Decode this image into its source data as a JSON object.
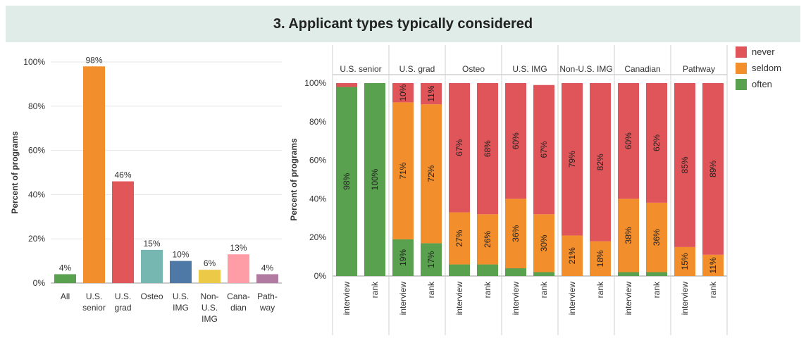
{
  "title": "3. Applicant types typically considered",
  "legend": [
    {
      "label": "never",
      "color": "#e05559"
    },
    {
      "label": "seldom",
      "color": "#f28e2b"
    },
    {
      "label": "often",
      "color": "#59a14f"
    }
  ],
  "chart_data": [
    {
      "type": "bar",
      "ylabel": "Percent of programs",
      "ylim": [
        0,
        100
      ],
      "yticks": [
        "0%",
        "20%",
        "40%",
        "60%",
        "80%",
        "100%"
      ],
      "categories": [
        {
          "label_lines": [
            "All"
          ],
          "value": 4,
          "value_label": "4%",
          "color": "#59a14f"
        },
        {
          "label_lines": [
            "U.S.",
            "senior"
          ],
          "value": 98,
          "value_label": "98%",
          "color": "#f28e2b"
        },
        {
          "label_lines": [
            "U.S.",
            "grad"
          ],
          "value": 46,
          "value_label": "46%",
          "color": "#e15759"
        },
        {
          "label_lines": [
            "Osteo"
          ],
          "value": 15,
          "value_label": "15%",
          "color": "#76b7b2"
        },
        {
          "label_lines": [
            "U.S.",
            "IMG"
          ],
          "value": 10,
          "value_label": "10%",
          "color": "#4e79a7"
        },
        {
          "label_lines": [
            "Non-",
            "U.S.",
            "IMG"
          ],
          "value": 6,
          "value_label": "6%",
          "color": "#edc948"
        },
        {
          "label_lines": [
            "Cana-",
            "dian"
          ],
          "value": 13,
          "value_label": "13%",
          "color": "#ff9da7"
        },
        {
          "label_lines": [
            "Path-",
            "way"
          ],
          "value": 4,
          "value_label": "4%",
          "color": "#b07aa1"
        }
      ]
    },
    {
      "type": "bar",
      "stacked": true,
      "ylabel": "Percent of programs",
      "ylim": [
        0,
        100
      ],
      "yticks": [
        "0%",
        "20%",
        "40%",
        "60%",
        "80%",
        "100%"
      ],
      "series_names": [
        "often",
        "seldom",
        "never"
      ],
      "groups": [
        {
          "name": "U.S. senior",
          "bars": [
            {
              "x": "interview",
              "often": 98,
              "seldom": 0,
              "never": 2,
              "labels": {
                "often": "98%"
              }
            },
            {
              "x": "rank",
              "often": 100,
              "seldom": 0,
              "never": 0,
              "labels": {
                "often": "100%"
              }
            }
          ]
        },
        {
          "name": "U.S. grad",
          "bars": [
            {
              "x": "interview",
              "often": 19,
              "seldom": 71,
              "never": 10,
              "labels": {
                "often": "19%",
                "seldom": "71%",
                "never": "10%"
              }
            },
            {
              "x": "rank",
              "often": 17,
              "seldom": 72,
              "never": 11,
              "labels": {
                "often": "17%",
                "seldom": "72%",
                "never": "11%"
              }
            }
          ]
        },
        {
          "name": "Osteo",
          "bars": [
            {
              "x": "interview",
              "often": 6,
              "seldom": 27,
              "never": 67,
              "labels": {
                "seldom": "27%",
                "never": "67%"
              }
            },
            {
              "x": "rank",
              "often": 6,
              "seldom": 26,
              "never": 68,
              "labels": {
                "seldom": "26%",
                "never": "68%"
              }
            }
          ]
        },
        {
          "name": "U.S. IMG",
          "bars": [
            {
              "x": "interview",
              "often": 4,
              "seldom": 36,
              "never": 60,
              "labels": {
                "seldom": "36%",
                "never": "60%"
              }
            },
            {
              "x": "rank",
              "often": 2,
              "seldom": 30,
              "never": 67,
              "labels": {
                "seldom": "30%",
                "never": "67%"
              }
            }
          ]
        },
        {
          "name": "Non-U.S. IMG",
          "bars": [
            {
              "x": "interview",
              "often": 0,
              "seldom": 21,
              "never": 79,
              "labels": {
                "seldom": "21%",
                "never": "79%"
              }
            },
            {
              "x": "rank",
              "often": 0,
              "seldom": 18,
              "never": 82,
              "labels": {
                "seldom": "18%",
                "never": "82%"
              }
            }
          ]
        },
        {
          "name": "Canadian",
          "bars": [
            {
              "x": "interview",
              "often": 2,
              "seldom": 38,
              "never": 60,
              "labels": {
                "seldom": "38%",
                "never": "60%"
              }
            },
            {
              "x": "rank",
              "often": 2,
              "seldom": 36,
              "never": 62,
              "labels": {
                "seldom": "36%",
                "never": "62%"
              }
            }
          ]
        },
        {
          "name": "Pathway",
          "bars": [
            {
              "x": "interview",
              "often": 0,
              "seldom": 15,
              "never": 85,
              "labels": {
                "seldom": "15%",
                "never": "85%"
              }
            },
            {
              "x": "rank",
              "often": 0,
              "seldom": 11,
              "never": 89,
              "labels": {
                "seldom": "11%",
                "never": "89%"
              }
            }
          ]
        }
      ]
    }
  ]
}
